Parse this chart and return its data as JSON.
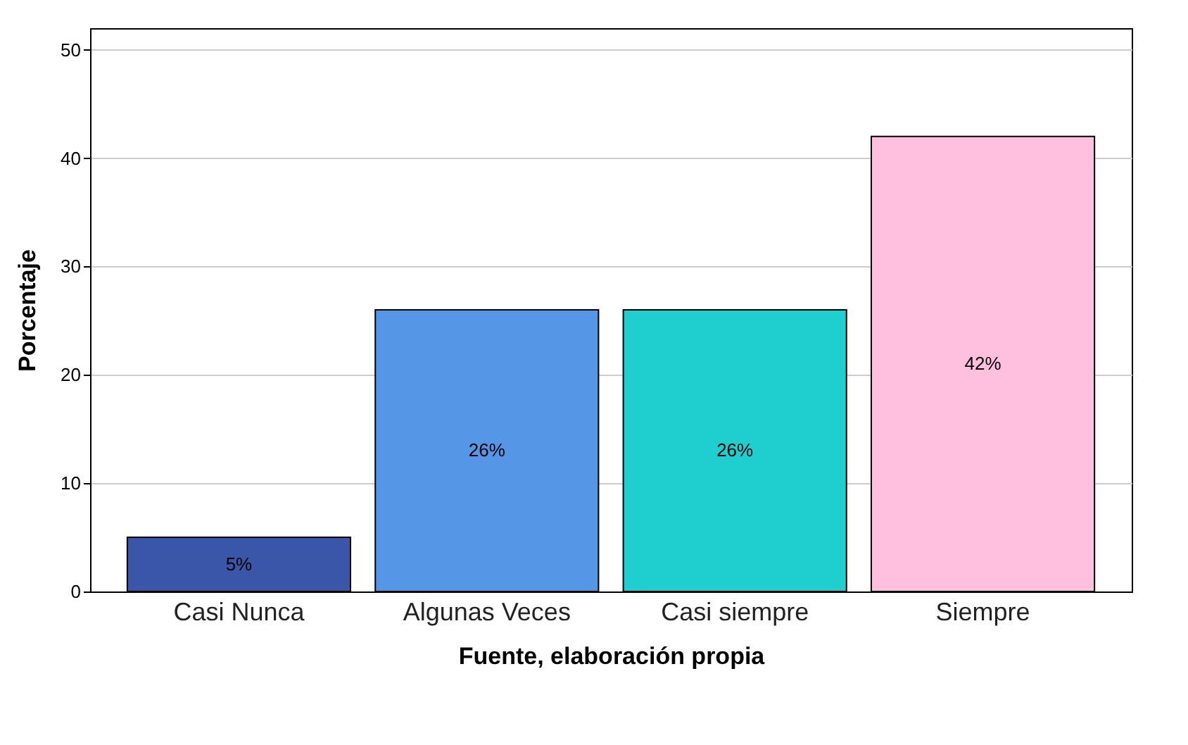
{
  "chart_data": {
    "type": "bar",
    "xlabel": "Fuente, elaboración propia",
    "ylabel": "Porcentaje",
    "categories": [
      "Casi Nunca",
      "Algunas Veces",
      "Casi siempre",
      "Siempre"
    ],
    "values": [
      5,
      26,
      26,
      42
    ],
    "colors": [
      "#3a56a8",
      "#5596e6",
      "#1fcfcf",
      "#ffc0e0"
    ],
    "value_labels": [
      "5%",
      "26%",
      "26%",
      "42%"
    ],
    "ylim": [
      0,
      52
    ],
    "yticks": [
      0,
      10,
      20,
      30,
      40,
      50
    ],
    "grid": "y"
  }
}
